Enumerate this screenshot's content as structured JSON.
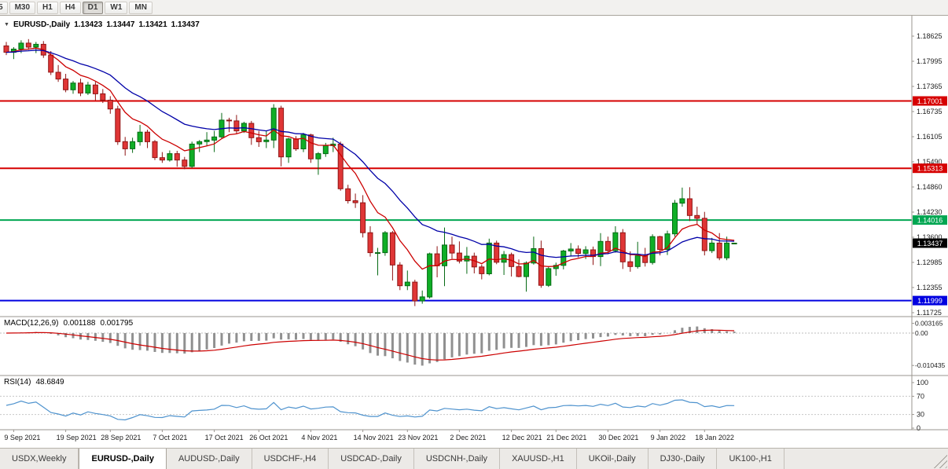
{
  "toolbar": {
    "timeframes": [
      {
        "label": "5",
        "active": false
      },
      {
        "label": "M30",
        "active": false
      },
      {
        "label": "H1",
        "active": false
      },
      {
        "label": "H4",
        "active": false
      },
      {
        "label": "D1",
        "active": true
      },
      {
        "label": "W1",
        "active": false
      },
      {
        "label": "MN",
        "active": false
      }
    ]
  },
  "icons": {
    "collapse": "▼"
  },
  "chart": {
    "title": {
      "symbol": "EURUSD-,Daily",
      "open": "1.13423",
      "high": "1.13447",
      "low": "1.13421",
      "close": "1.13437"
    },
    "y_axis_labels": [
      "1.18625",
      "1.17995",
      "1.17365",
      "1.16735",
      "1.16105",
      "1.15490",
      "1.14860",
      "1.14230",
      "1.13600",
      "1.12985",
      "1.12355",
      "1.11725"
    ],
    "hlines": [
      {
        "price": 1.17001,
        "label": "1.17001",
        "color": "#d60000",
        "name": "resistance-line-upper"
      },
      {
        "price": 1.15313,
        "label": "1.15313",
        "color": "#d60000",
        "name": "resistance-line-lower"
      },
      {
        "price": 1.14016,
        "label": "1.14016",
        "color": "#00a651",
        "name": "support-line-green"
      },
      {
        "price": 1.11999,
        "label": "1.11999",
        "color": "#0000e0",
        "name": "support-line-blue"
      }
    ],
    "current_price": {
      "price": 1.13437,
      "label": "1.13437",
      "color": "#000000"
    }
  },
  "chart_data": {
    "type": "candlestick",
    "symbol": "EURUSD",
    "timeframe": "Daily",
    "colors": {
      "up": "#0fae26",
      "up_border": "#066a14",
      "down": "#e03636",
      "down_border": "#8f1515"
    },
    "moving_averages": [
      {
        "period": 8,
        "color": "#cc0000"
      },
      {
        "period": 20,
        "color": "#0000a8"
      }
    ],
    "x_labels": [
      {
        "text": "9 Sep 2021",
        "i": 1
      },
      {
        "text": "19 Sep 2021",
        "i": 8
      },
      {
        "text": "28 Sep 2021",
        "i": 14
      },
      {
        "text": "7 Oct 2021",
        "i": 21
      },
      {
        "text": "17 Oct 2021",
        "i": 28
      },
      {
        "text": "26 Oct 2021",
        "i": 34
      },
      {
        "text": "4 Nov 2021",
        "i": 41
      },
      {
        "text": "14 Nov 2021",
        "i": 48
      },
      {
        "text": "23 Nov 2021",
        "i": 54
      },
      {
        "text": "2 Dec 2021",
        "i": 61
      },
      {
        "text": "12 Dec 2021",
        "i": 68
      },
      {
        "text": "21 Dec 2021",
        "i": 74
      },
      {
        "text": "30 Dec 2021",
        "i": 81
      },
      {
        "text": "9 Jan 2022",
        "i": 88
      },
      {
        "text": "18 Jan 2022",
        "i": 94
      }
    ],
    "candles": [
      [
        1.1838,
        1.1848,
        1.1815,
        1.1822
      ],
      [
        1.1822,
        1.1835,
        1.1805,
        1.183
      ],
      [
        1.183,
        1.1852,
        1.182,
        1.1845
      ],
      [
        1.1845,
        1.1855,
        1.1828,
        1.1835
      ],
      [
        1.1835,
        1.1848,
        1.182,
        1.1842
      ],
      [
        1.1842,
        1.185,
        1.1808,
        1.1815
      ],
      [
        1.1815,
        1.1825,
        1.1765,
        1.1772
      ],
      [
        1.1772,
        1.179,
        1.1748,
        1.1755
      ],
      [
        1.1755,
        1.1768,
        1.1722,
        1.1728
      ],
      [
        1.1728,
        1.175,
        1.1718,
        1.1745
      ],
      [
        1.1745,
        1.1756,
        1.1712,
        1.172
      ],
      [
        1.172,
        1.1748,
        1.1715,
        1.174
      ],
      [
        1.174,
        1.1748,
        1.1702,
        1.1718
      ],
      [
        1.1718,
        1.173,
        1.1695,
        1.1702
      ],
      [
        1.1702,
        1.1712,
        1.1668,
        1.168
      ],
      [
        1.168,
        1.1688,
        1.159,
        1.1598
      ],
      [
        1.1598,
        1.161,
        1.1563,
        1.158
      ],
      [
        1.158,
        1.1608,
        1.157,
        1.1598
      ],
      [
        1.1598,
        1.164,
        1.1588,
        1.1622
      ],
      [
        1.1622,
        1.1628,
        1.1582,
        1.1598
      ],
      [
        1.1598,
        1.1602,
        1.1552,
        1.1558
      ],
      [
        1.1558,
        1.1572,
        1.1545,
        1.1552
      ],
      [
        1.1552,
        1.1576,
        1.1548,
        1.1568
      ],
      [
        1.1568,
        1.1575,
        1.1535,
        1.1552
      ],
      [
        1.1552,
        1.156,
        1.1529,
        1.1536
      ],
      [
        1.1536,
        1.1598,
        1.1532,
        1.1592
      ],
      [
        1.1592,
        1.1602,
        1.1572,
        1.1598
      ],
      [
        1.1598,
        1.1622,
        1.1588,
        1.1602
      ],
      [
        1.1602,
        1.1625,
        1.1572,
        1.161
      ],
      [
        1.161,
        1.167,
        1.1605,
        1.1652
      ],
      [
        1.1652,
        1.1658,
        1.1622,
        1.165
      ],
      [
        1.165,
        1.1665,
        1.1618,
        1.1625
      ],
      [
        1.1625,
        1.1648,
        1.162,
        1.1644
      ],
      [
        1.1644,
        1.165,
        1.159,
        1.1608
      ],
      [
        1.1608,
        1.1625,
        1.1585,
        1.1598
      ],
      [
        1.1598,
        1.1626,
        1.1582,
        1.1602
      ],
      [
        1.1602,
        1.1692,
        1.1582,
        1.1682
      ],
      [
        1.1682,
        1.1688,
        1.1536,
        1.156
      ],
      [
        1.156,
        1.1608,
        1.1545,
        1.1605
      ],
      [
        1.1605,
        1.1612,
        1.1575,
        1.158
      ],
      [
        1.158,
        1.162,
        1.1572,
        1.1615
      ],
      [
        1.1615,
        1.1618,
        1.1545,
        1.1555
      ],
      [
        1.1555,
        1.1572,
        1.1515,
        1.1568
      ],
      [
        1.1568,
        1.1595,
        1.156,
        1.1588
      ],
      [
        1.1588,
        1.1608,
        1.1572,
        1.1592
      ],
      [
        1.1592,
        1.1598,
        1.1475,
        1.148
      ],
      [
        1.148,
        1.149,
        1.1443,
        1.145
      ],
      [
        1.145,
        1.1468,
        1.1432,
        1.1445
      ],
      [
        1.1445,
        1.1464,
        1.1358,
        1.137
      ],
      [
        1.137,
        1.1386,
        1.131,
        1.132
      ],
      [
        1.132,
        1.1332,
        1.1263,
        1.132
      ],
      [
        1.132,
        1.1374,
        1.1312,
        1.137
      ],
      [
        1.137,
        1.1374,
        1.125,
        1.1289
      ],
      [
        1.1289,
        1.1296,
        1.1226,
        1.1237
      ],
      [
        1.1237,
        1.1275,
        1.1226,
        1.1246
      ],
      [
        1.1246,
        1.1252,
        1.1186,
        1.1199
      ],
      [
        1.1199,
        1.1225,
        1.1192,
        1.1209
      ],
      [
        1.1209,
        1.132,
        1.1205,
        1.1317
      ],
      [
        1.1317,
        1.1336,
        1.1258,
        1.1287
      ],
      [
        1.1287,
        1.1383,
        1.1236,
        1.1339
      ],
      [
        1.1339,
        1.136,
        1.1305,
        1.1319
      ],
      [
        1.1319,
        1.1348,
        1.1293,
        1.1299
      ],
      [
        1.1299,
        1.1334,
        1.1267,
        1.1311
      ],
      [
        1.1311,
        1.132,
        1.1268,
        1.1284
      ],
      [
        1.1284,
        1.129,
        1.1253,
        1.1267
      ],
      [
        1.1267,
        1.1355,
        1.1263,
        1.1344
      ],
      [
        1.1344,
        1.135,
        1.1291,
        1.1296
      ],
      [
        1.1296,
        1.1324,
        1.1264,
        1.1315
      ],
      [
        1.1315,
        1.132,
        1.126,
        1.1285
      ],
      [
        1.1285,
        1.1303,
        1.1258,
        1.126
      ],
      [
        1.126,
        1.1298,
        1.1222,
        1.1294
      ],
      [
        1.1294,
        1.136,
        1.129,
        1.133
      ],
      [
        1.133,
        1.135,
        1.1232,
        1.1238
      ],
      [
        1.1238,
        1.1285,
        1.1234,
        1.128
      ],
      [
        1.128,
        1.1295,
        1.1262,
        1.1288
      ],
      [
        1.1288,
        1.1327,
        1.1278,
        1.1324
      ],
      [
        1.1324,
        1.1344,
        1.131,
        1.1329
      ],
      [
        1.1329,
        1.1338,
        1.1308,
        1.1318
      ],
      [
        1.1318,
        1.1336,
        1.1304,
        1.1327
      ],
      [
        1.1327,
        1.1335,
        1.1289,
        1.131
      ],
      [
        1.131,
        1.1369,
        1.1286,
        1.1348
      ],
      [
        1.1348,
        1.136,
        1.1316,
        1.1325
      ],
      [
        1.1325,
        1.1386,
        1.132,
        1.137
      ],
      [
        1.137,
        1.1379,
        1.1279,
        1.1297
      ],
      [
        1.1297,
        1.1323,
        1.1272,
        1.1285
      ],
      [
        1.1285,
        1.1347,
        1.128,
        1.1312
      ],
      [
        1.1312,
        1.1332,
        1.1285,
        1.1295
      ],
      [
        1.1295,
        1.1366,
        1.129,
        1.136
      ],
      [
        1.136,
        1.1362,
        1.1313,
        1.1328
      ],
      [
        1.1328,
        1.1375,
        1.1314,
        1.1367
      ],
      [
        1.1367,
        1.1452,
        1.136,
        1.1444
      ],
      [
        1.1444,
        1.1483,
        1.1435,
        1.1455
      ],
      [
        1.1455,
        1.1484,
        1.1399,
        1.1413
      ],
      [
        1.1413,
        1.1435,
        1.1392,
        1.1406
      ],
      [
        1.1406,
        1.1422,
        1.1313,
        1.1325
      ],
      [
        1.1325,
        1.1357,
        1.1319,
        1.1344
      ],
      [
        1.1344,
        1.1369,
        1.1301,
        1.1307
      ],
      [
        1.1307,
        1.136,
        1.1301,
        1.1344
      ],
      [
        1.13423,
        1.13447,
        1.13421,
        1.13437
      ]
    ]
  },
  "macd": {
    "label": "MACD(12,26,9)",
    "value": "0.001188",
    "signal_value": "0.001795",
    "axis_labels": [
      "0.003165",
      "0.00",
      "-0.010435"
    ],
    "colors": {
      "histogram": "#909090",
      "signal": "#cc0000"
    }
  },
  "rsi": {
    "label": "RSI(14)",
    "value": "48.6849",
    "axis_labels": [
      "100",
      "70",
      "30",
      "0"
    ],
    "levels": [
      70,
      30
    ],
    "color": "#4f93ce"
  },
  "tabs": [
    {
      "label": "USDX,Weekly",
      "active": false
    },
    {
      "label": "EURUSD-,Daily",
      "active": true
    },
    {
      "label": "AUDUSD-,Daily",
      "active": false
    },
    {
      "label": "USDCHF-,H4",
      "active": false
    },
    {
      "label": "USDCAD-,Daily",
      "active": false
    },
    {
      "label": "USDCNH-,Daily",
      "active": false
    },
    {
      "label": "XAUUSD-,H1",
      "active": false
    },
    {
      "label": "UKOil-,Daily",
      "active": false
    },
    {
      "label": "DJ30-,Daily",
      "active": false
    },
    {
      "label": "UK100-,H1",
      "active": false
    }
  ]
}
